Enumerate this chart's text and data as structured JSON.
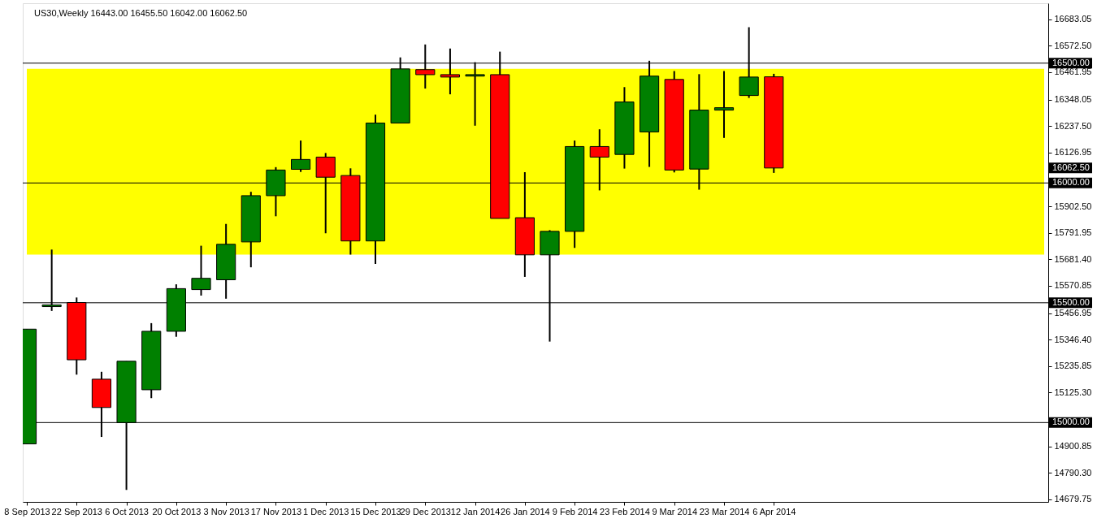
{
  "chart_data": {
    "type": "candlestick",
    "title": "US30,Weekly 16443.00 16455.50 16042.00 16062.50",
    "x": [
      "2013-09-08",
      "2013-09-15",
      "2013-09-22",
      "2013-09-29",
      "2013-10-06",
      "2013-10-13",
      "2013-10-20",
      "2013-10-27",
      "2013-11-03",
      "2013-11-10",
      "2013-11-17",
      "2013-11-24",
      "2013-12-01",
      "2013-12-08",
      "2013-12-15",
      "2013-12-22",
      "2013-12-29",
      "2014-01-05",
      "2014-01-12",
      "2014-01-19",
      "2014-01-26",
      "2014-02-02",
      "2014-02-09",
      "2014-02-16",
      "2014-02-23",
      "2014-03-02",
      "2014-03-09",
      "2014-03-16",
      "2014-03-23",
      "2014-03-30",
      "2014-04-06"
    ],
    "ohlc": [
      [
        14911,
        15390,
        14911,
        15390
      ],
      [
        15484,
        15722,
        15466,
        15491
      ],
      [
        15501,
        15522,
        15200,
        15262
      ],
      [
        15181,
        15212,
        14940,
        15063
      ],
      [
        15000,
        15256,
        14719,
        15256
      ],
      [
        15137,
        15415,
        15102,
        15381
      ],
      [
        15381,
        15577,
        15358,
        15559
      ],
      [
        15555,
        15738,
        15530,
        15602
      ],
      [
        15596,
        15829,
        15517,
        15744
      ],
      [
        15754,
        15963,
        15648,
        15947
      ],
      [
        15947,
        16066,
        15861,
        16054
      ],
      [
        16057,
        16177,
        16046,
        16098
      ],
      [
        16108,
        16125,
        15790,
        16024
      ],
      [
        16031,
        16061,
        15701,
        15758
      ],
      [
        15758,
        16285,
        15662,
        16250
      ],
      [
        16250,
        16524,
        16250,
        16476
      ],
      [
        16473,
        16578,
        16394,
        16452
      ],
      [
        16452,
        16561,
        16370,
        16442
      ],
      [
        16446,
        16504,
        16239,
        16452
      ],
      [
        16452,
        16548,
        15852,
        15852
      ],
      [
        15855,
        16045,
        15608,
        15700
      ],
      [
        15700,
        15803,
        15338,
        15798
      ],
      [
        15798,
        16177,
        15729,
        16152
      ],
      [
        16152,
        16224,
        15969,
        16108
      ],
      [
        16119,
        16400,
        16060,
        16338
      ],
      [
        16213,
        16510,
        16067,
        16446
      ],
      [
        16432,
        16467,
        16044,
        16054
      ],
      [
        16058,
        16454,
        15972,
        16304
      ],
      [
        16304,
        16467,
        16188,
        16314
      ],
      [
        16365,
        16650,
        16355,
        16442
      ],
      [
        16443.0,
        16455.5,
        16042.0,
        16062.5
      ]
    ],
    "colors": [
      "#008000",
      "#008000",
      "#ff0000",
      "#ff0000",
      "#008000",
      "#008000",
      "#008000",
      "#008000",
      "#008000",
      "#008000",
      "#008000",
      "#008000",
      "#ff0000",
      "#ff0000",
      "#008000",
      "#008000",
      "#ff0000",
      "#ff0000",
      "#008000",
      "#ff0000",
      "#ff0000",
      "#008000",
      "#008000",
      "#ff0000",
      "#008000",
      "#008000",
      "#ff0000",
      "#008000",
      "#008000",
      "#008000",
      "#ff0000"
    ],
    "xlim": [
      "2013-09-08",
      "2014-06-21"
    ],
    "xticks": [
      {
        "value": "2013-09-08",
        "label": "8 Sep 2013"
      },
      {
        "value": "2013-09-22",
        "label": "22 Sep 2013"
      },
      {
        "value": "2013-10-06",
        "label": "6 Oct 2013"
      },
      {
        "value": "2013-10-20",
        "label": "20 Oct 2013"
      },
      {
        "value": "2013-11-03",
        "label": "3 Nov 2013"
      },
      {
        "value": "2013-11-17",
        "label": "17 Nov 2013"
      },
      {
        "value": "2013-12-01",
        "label": "1 Dec 2013"
      },
      {
        "value": "2013-12-15",
        "label": "15 Dec 2013"
      },
      {
        "value": "2013-12-29",
        "label": "29 Dec 2013"
      },
      {
        "value": "2014-01-12",
        "label": "12 Jan 2014"
      },
      {
        "value": "2014-01-26",
        "label": "26 Jan 2014"
      },
      {
        "value": "2014-02-09",
        "label": "9 Feb 2014"
      },
      {
        "value": "2014-02-23",
        "label": "23 Feb 2014"
      },
      {
        "value": "2014-03-09",
        "label": "9 Mar 2014"
      },
      {
        "value": "2014-03-23",
        "label": "23 Mar 2014"
      },
      {
        "value": "2014-04-06",
        "label": "6 Apr 2014"
      }
    ],
    "ylim": [
      14669,
      16750
    ],
    "yticks": [
      {
        "value": 16683.05,
        "label": "16683.05"
      },
      {
        "value": 16572.5,
        "label": "16572.50"
      },
      {
        "value": 16461.95,
        "label": "16461.95"
      },
      {
        "value": 16348.05,
        "label": "16348.05"
      },
      {
        "value": 16237.5,
        "label": "16237.50"
      },
      {
        "value": 16126.95,
        "label": "16126.95"
      },
      {
        "value": 15902.5,
        "label": "15902.50"
      },
      {
        "value": 15791.95,
        "label": "15791.95"
      },
      {
        "value": 15681.4,
        "label": "15681.40"
      },
      {
        "value": 15570.85,
        "label": "15570.85"
      },
      {
        "value": 15456.95,
        "label": "15456.95"
      },
      {
        "value": 15346.4,
        "label": "15346.40"
      },
      {
        "value": 15235.85,
        "label": "15235.85"
      },
      {
        "value": 15125.3,
        "label": "15125.30"
      },
      {
        "value": 14900.85,
        "label": "14900.85"
      },
      {
        "value": 14790.3,
        "label": "14790.30"
      },
      {
        "value": 14679.75,
        "label": "14679.75"
      }
    ],
    "ref_lines": [
      {
        "axis": "y",
        "value": 16500,
        "label": "16500.00",
        "color": "#000000"
      },
      {
        "axis": "y",
        "value": 16000,
        "label": "16000.00",
        "color": "#000000"
      },
      {
        "axis": "y",
        "value": 15500,
        "label": "15500.00",
        "color": "#000000"
      },
      {
        "axis": "y",
        "value": 15000,
        "label": "15000.00",
        "color": "#000000"
      }
    ],
    "bands": [
      {
        "axis": "y",
        "from": 15701,
        "to": 16476,
        "color": "#ffff00"
      }
    ],
    "annotations": [
      "16062.50"
    ],
    "grid": false
  }
}
